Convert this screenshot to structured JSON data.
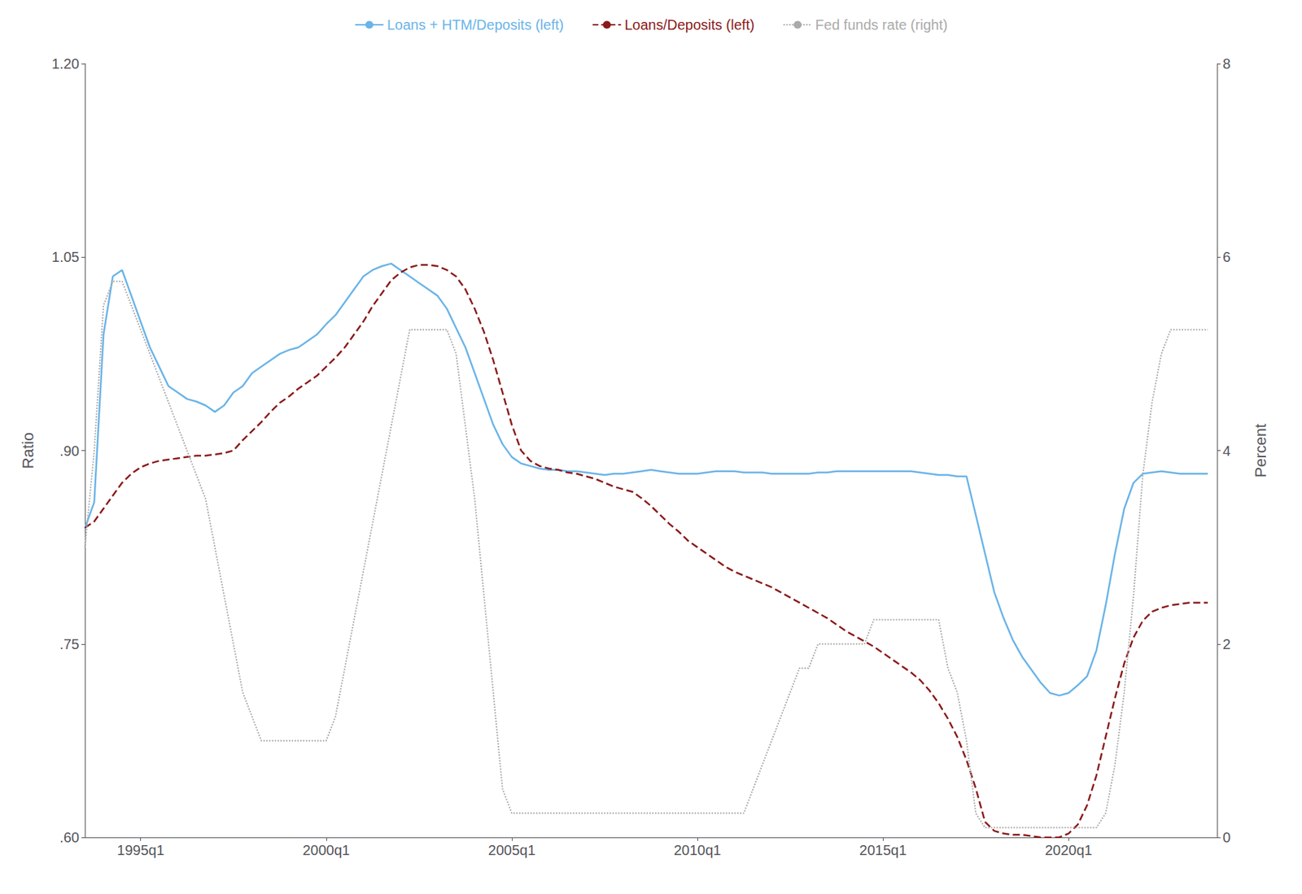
{
  "chart_data": {
    "type": "line",
    "x": [
      1993.5,
      1993.75,
      1994,
      1994.25,
      1994.5,
      1994.75,
      1995,
      1995.25,
      1995.5,
      1995.75,
      1996,
      1996.25,
      1996.5,
      1996.75,
      1997,
      1997.25,
      1997.5,
      1997.75,
      1998,
      1998.25,
      1998.5,
      1998.75,
      1999,
      1999.25,
      1999.5,
      1999.75,
      2000,
      2000.25,
      2000.5,
      2000.75,
      2001,
      2001.25,
      2001.5,
      2001.75,
      2002,
      2002.25,
      2002.5,
      2002.75,
      2003,
      2003.25,
      2003.5,
      2003.75,
      2004,
      2004.25,
      2004.5,
      2004.75,
      2005,
      2005.25,
      2005.5,
      2005.75,
      2006,
      2006.25,
      2006.5,
      2006.75,
      2007,
      2007.25,
      2007.5,
      2007.75,
      2008,
      2008.25,
      2008.5,
      2008.75,
      2009,
      2009.25,
      2009.5,
      2009.75,
      2010,
      2010.25,
      2010.5,
      2010.75,
      2011,
      2011.25,
      2011.5,
      2011.75,
      2012,
      2012.25,
      2012.5,
      2012.75,
      2013,
      2013.25,
      2013.5,
      2013.75,
      2014,
      2014.25,
      2014.5,
      2014.75,
      2015,
      2015.25,
      2015.5,
      2015.75,
      2016,
      2016.25,
      2016.5,
      2016.75,
      2017,
      2017.25,
      2017.5,
      2017.75,
      2018,
      2018.25,
      2018.5,
      2018.75,
      2019,
      2019.25,
      2019.5,
      2019.75,
      2020,
      2020.25,
      2020.5,
      2020.75,
      2021,
      2021.25,
      2021.5,
      2021.75,
      2022,
      2022.25,
      2022.5,
      2022.75,
      2023,
      2023.25,
      2023.5,
      2023.75
    ],
    "xlim": [
      1993.5,
      2024.0
    ],
    "xticks": [
      {
        "value": 1995,
        "label": "1995q1"
      },
      {
        "value": 2000,
        "label": "2000q1"
      },
      {
        "value": 2005,
        "label": "2005q1"
      },
      {
        "value": 2010,
        "label": "2010q1"
      },
      {
        "value": 2015,
        "label": "2015q1"
      },
      {
        "value": 2020,
        "label": "2020q1"
      }
    ],
    "ylabel": "Ratio",
    "ylim": [
      0.6,
      1.2
    ],
    "yticks": [
      {
        "value": 0.6,
        "label": ".60"
      },
      {
        "value": 0.75,
        "label": ".75"
      },
      {
        "value": 0.9,
        "label": ".90"
      },
      1.05,
      {
        "value": 1.2,
        "label": "1.20"
      }
    ],
    "y2label": "Percent",
    "y2lim": [
      0.0,
      8.0
    ],
    "y2ticks": [
      0,
      2,
      4,
      6,
      8
    ],
    "grid": false,
    "legend": "top",
    "series": [
      {
        "name": "Loans + HTM/Deposits (left)",
        "color": "#6ab4e8",
        "line_style": "solid",
        "axis": "y",
        "values": [
          0.84,
          0.86,
          0.99,
          1.035,
          1.04,
          1.02,
          1.0,
          0.98,
          0.965,
          0.95,
          0.945,
          0.94,
          0.938,
          0.935,
          0.93,
          0.935,
          0.945,
          0.95,
          0.96,
          0.965,
          0.97,
          0.975,
          0.978,
          0.98,
          0.985,
          0.99,
          0.998,
          1.005,
          1.015,
          1.025,
          1.035,
          1.04,
          1.043,
          1.045,
          1.04,
          1.035,
          1.03,
          1.025,
          1.02,
          1.01,
          0.995,
          0.98,
          0.96,
          0.94,
          0.92,
          0.905,
          0.895,
          0.89,
          0.888,
          0.886,
          0.885,
          0.885,
          0.884,
          0.884,
          0.883,
          0.882,
          0.881,
          0.882,
          0.882,
          0.883,
          0.884,
          0.885,
          0.884,
          0.883,
          0.882,
          0.882,
          0.882,
          0.883,
          0.884,
          0.884,
          0.884,
          0.883,
          0.883,
          0.883,
          0.882,
          0.882,
          0.882,
          0.882,
          0.882,
          0.883,
          0.883,
          0.884,
          0.884,
          0.884,
          0.884,
          0.884,
          0.884,
          0.884,
          0.884,
          0.884,
          0.883,
          0.882,
          0.881,
          0.881,
          0.88,
          0.88,
          0.85,
          0.82,
          0.79,
          0.77,
          0.753,
          0.74,
          0.73,
          0.72,
          0.712,
          0.71,
          0.712,
          0.718,
          0.725,
          0.745,
          0.78,
          0.82,
          0.855,
          0.875,
          0.882,
          0.883,
          0.884,
          0.883,
          0.882,
          0.882,
          0.882,
          0.882
        ]
      },
      {
        "name": "Loans/Deposits (left)",
        "color": "#8b1a1a",
        "line_style": "dashed",
        "axis": "y",
        "values": [
          0.84,
          0.845,
          0.855,
          0.865,
          0.875,
          0.882,
          0.887,
          0.89,
          0.892,
          0.893,
          0.894,
          0.895,
          0.896,
          0.896,
          0.897,
          0.898,
          0.9,
          0.908,
          0.915,
          0.922,
          0.93,
          0.937,
          0.942,
          0.948,
          0.953,
          0.958,
          0.965,
          0.972,
          0.98,
          0.99,
          1.0,
          1.012,
          1.022,
          1.032,
          1.038,
          1.042,
          1.044,
          1.044,
          1.043,
          1.04,
          1.035,
          1.025,
          1.01,
          0.992,
          0.97,
          0.945,
          0.92,
          0.9,
          0.892,
          0.888,
          0.886,
          0.885,
          0.883,
          0.882,
          0.88,
          0.878,
          0.875,
          0.872,
          0.87,
          0.868,
          0.863,
          0.857,
          0.85,
          0.843,
          0.837,
          0.83,
          0.825,
          0.82,
          0.815,
          0.81,
          0.806,
          0.803,
          0.8,
          0.797,
          0.794,
          0.79,
          0.786,
          0.782,
          0.778,
          0.774,
          0.77,
          0.765,
          0.76,
          0.756,
          0.752,
          0.748,
          0.743,
          0.738,
          0.733,
          0.728,
          0.722,
          0.714,
          0.704,
          0.692,
          0.678,
          0.66,
          0.638,
          0.612,
          0.605,
          0.603,
          0.602,
          0.602,
          0.601,
          0.6,
          0.6,
          0.6,
          0.603,
          0.61,
          0.625,
          0.648,
          0.678,
          0.708,
          0.735,
          0.755,
          0.768,
          0.775,
          0.778,
          0.78,
          0.781,
          0.782,
          0.782,
          0.782
        ]
      },
      {
        "name": "Fed funds rate (right)",
        "color": "#aaaaaa",
        "line_style": "dotted",
        "axis": "y2",
        "values": [
          3.0,
          4.0,
          5.5,
          5.75,
          5.75,
          5.5,
          5.25,
          5.0,
          4.75,
          4.5,
          4.25,
          4.0,
          3.75,
          3.5,
          3.0,
          2.5,
          2.0,
          1.5,
          1.25,
          1.0,
          1.0,
          1.0,
          1.0,
          1.0,
          1.0,
          1.0,
          1.0,
          1.25,
          1.75,
          2.25,
          2.75,
          3.25,
          3.75,
          4.25,
          4.75,
          5.25,
          5.25,
          5.25,
          5.25,
          5.25,
          5.0,
          4.25,
          3.5,
          2.5,
          1.5,
          0.5,
          0.25,
          0.25,
          0.25,
          0.25,
          0.25,
          0.25,
          0.25,
          0.25,
          0.25,
          0.25,
          0.25,
          0.25,
          0.25,
          0.25,
          0.25,
          0.25,
          0.25,
          0.25,
          0.25,
          0.25,
          0.25,
          0.25,
          0.25,
          0.25,
          0.25,
          0.25,
          0.5,
          0.75,
          1.0,
          1.25,
          1.5,
          1.75,
          1.75,
          2.0,
          2.0,
          2.0,
          2.0,
          2.0,
          2.0,
          2.25,
          2.25,
          2.25,
          2.25,
          2.25,
          2.25,
          2.25,
          2.25,
          1.75,
          1.5,
          1.0,
          0.25,
          0.1,
          0.1,
          0.1,
          0.1,
          0.1,
          0.1,
          0.1,
          0.1,
          0.1,
          0.1,
          0.1,
          0.1,
          0.1,
          0.25,
          0.75,
          1.5,
          2.5,
          3.75,
          4.5,
          5.0,
          5.25,
          5.25,
          5.25,
          5.25,
          5.25
        ]
      }
    ]
  }
}
